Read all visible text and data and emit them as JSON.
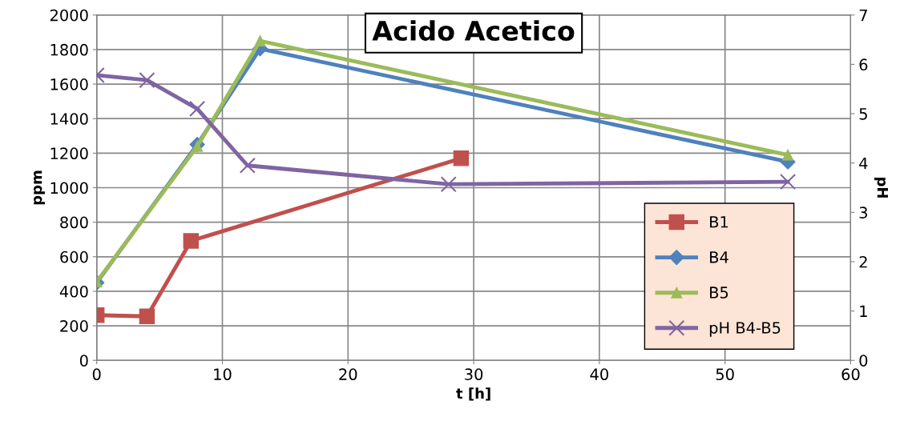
{
  "chart_data": {
    "type": "line",
    "title": "Acido Acetico",
    "xlabel": "t [h]",
    "ylabel": "ppm",
    "y2label": "pH",
    "xlim": [
      0,
      60
    ],
    "xticks": [
      0,
      10,
      20,
      30,
      40,
      50,
      60
    ],
    "ylim": [
      0,
      2000
    ],
    "yticks": [
      0,
      200,
      400,
      600,
      800,
      1000,
      1200,
      1400,
      1600,
      1800,
      2000
    ],
    "y2lim": [
      0,
      7
    ],
    "y2ticks": [
      0,
      1,
      2,
      3,
      4,
      5,
      6,
      7
    ],
    "grid": true,
    "legend": "bottom right",
    "line_style": "solid",
    "series": [
      {
        "name": "B1",
        "color": "#c0504d",
        "marker": "square",
        "x": [
          0,
          4,
          7.5,
          29
        ],
        "values": [
          262,
          255,
          692,
          1170
        ]
      },
      {
        "name": "B4",
        "color": "#4f81bd",
        "marker": "diamond",
        "x": [
          0,
          8,
          13,
          55
        ],
        "values": [
          450,
          1250,
          1805,
          1150
        ]
      },
      {
        "name": "B5",
        "color": "#9bbb59",
        "marker": "triangle",
        "x": [
          0,
          8,
          13,
          55
        ],
        "values": [
          455,
          1240,
          1850,
          1190
        ]
      },
      {
        "name": "pH B4-B5",
        "color": "#8064a2",
        "marker": "cross",
        "axis": "y2",
        "x": [
          0,
          4,
          8,
          12,
          28,
          55
        ],
        "values": [
          5.78,
          5.68,
          5.1,
          3.95,
          3.57,
          3.62
        ]
      }
    ]
  }
}
